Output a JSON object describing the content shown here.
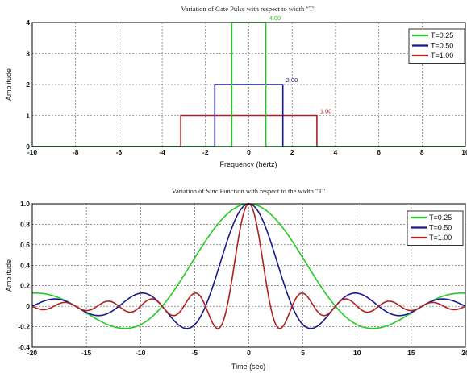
{
  "chart_data": [
    {
      "type": "line",
      "title": "Variation of Gate Pulse with respect to width \"T\"",
      "xlabel": "Frequency (hertz)",
      "ylabel": "Amplitude",
      "xlim": [
        -10,
        10
      ],
      "ylim": [
        0,
        4
      ],
      "xticks": [
        -10,
        -8,
        -6,
        -4,
        -2,
        0,
        2,
        4,
        6,
        8,
        10
      ],
      "yticks": [
        0,
        1,
        2,
        3,
        4
      ],
      "grid": true,
      "legend_position": "top-right",
      "series": [
        {
          "name": "T=0.25",
          "color": "#22cc22",
          "half_width": 0.785,
          "height": 4.0,
          "label": "4.00"
        },
        {
          "name": "T=0.50",
          "color": "#1a1a8c",
          "half_width": 1.571,
          "height": 2.0,
          "label": "2.00"
        },
        {
          "name": "T=1.00",
          "color": "#b02020",
          "half_width": 3.142,
          "height": 1.0,
          "label": "1.00"
        }
      ]
    },
    {
      "type": "line",
      "title": "Variation of Sinc Function with respect to the width \"T\"",
      "xlabel": "Time (sec)",
      "ylabel": "Amplitude",
      "xlim": [
        -20,
        20
      ],
      "ylim": [
        -0.4,
        1
      ],
      "xticks": [
        -20,
        -15,
        -10,
        -5,
        0,
        5,
        10,
        15,
        20
      ],
      "yticks": [
        -0.4,
        -0.2,
        0,
        0.2,
        0.4,
        0.6,
        0.8,
        1
      ],
      "grid": true,
      "legend_position": "top-right",
      "series": [
        {
          "name": "T=0.25",
          "color": "#22cc22",
          "zero_spacing": 8.0
        },
        {
          "name": "T=0.50",
          "color": "#1a1a8c",
          "zero_spacing": 4.0
        },
        {
          "name": "T=1.00",
          "color": "#b02020",
          "zero_spacing": 2.0
        }
      ]
    }
  ]
}
